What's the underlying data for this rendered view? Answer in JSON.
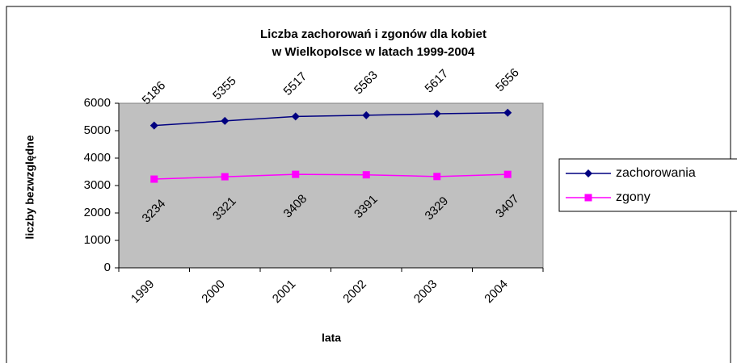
{
  "chart_data": {
    "type": "line",
    "title": [
      "Liczba zachorowań i zgonów dla kobiet",
      "w Wielkopolsce w latach 1999-2004"
    ],
    "x_label": "lata",
    "y_label": "liczby bezwzględne",
    "categories": [
      "1999",
      "2000",
      "2001",
      "2002",
      "2003",
      "2004"
    ],
    "series": [
      {
        "name": "zachorowania",
        "color": "#000080",
        "marker": "diamond",
        "values": [
          5186,
          5355,
          5517,
          5563,
          5617,
          5656
        ]
      },
      {
        "name": "zgony",
        "color": "#ff00ff",
        "marker": "square",
        "values": [
          3234,
          3321,
          3408,
          3391,
          3329,
          3407
        ]
      }
    ],
    "ylim": [
      0,
      6000
    ],
    "yticks": [
      0,
      1000,
      2000,
      3000,
      4000,
      5000,
      6000
    ],
    "grid": false,
    "legend": "right"
  }
}
